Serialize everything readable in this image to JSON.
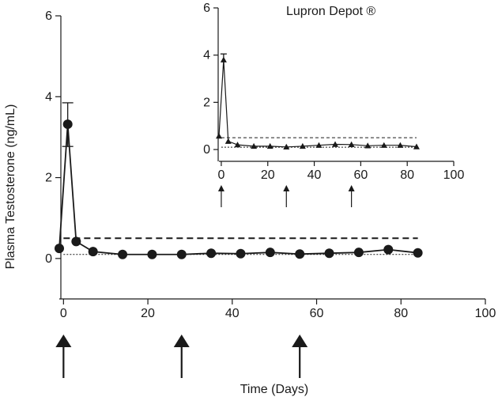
{
  "chart_data": [
    {
      "type": "line",
      "title": "",
      "xlabel": "Time (Days)",
      "ylabel": "Plasma Testosterone (ng/mL)",
      "xlim": [
        -1,
        100
      ],
      "ylim": [
        -1,
        6
      ],
      "xticks": [
        0,
        20,
        40,
        60,
        80,
        100
      ],
      "yticks": [
        0,
        2,
        4,
        6
      ],
      "x_tick_labels": [
        "0",
        "20",
        "40",
        "60",
        "80",
        "100"
      ],
      "y_tick_labels": [
        "0",
        "2",
        "4",
        "6"
      ],
      "grid": false,
      "marker": "circle",
      "series": [
        {
          "x": [
            -1,
            1,
            3,
            7,
            14,
            21,
            28,
            35,
            42,
            49,
            56,
            63,
            70,
            77,
            84
          ],
          "y": [
            0.25,
            3.32,
            0.42,
            0.17,
            0.1,
            0.1,
            0.1,
            0.13,
            0.12,
            0.15,
            0.11,
            0.13,
            0.15,
            0.22,
            0.14
          ],
          "error_bars": [
            {
              "x": 1,
              "y": 3.32,
              "lower": 2.77,
              "upper": 3.85
            }
          ]
        }
      ],
      "reference_lines": [
        {
          "y": 0.5,
          "style": "dashed"
        },
        {
          "y": 0.1,
          "style": "dotted"
        }
      ],
      "dosing_arrows_x": [
        0,
        28,
        56
      ]
    },
    {
      "type": "line",
      "title": "Lupron  Depot ®",
      "xlabel": "",
      "ylabel": "",
      "xlim": [
        -1,
        100
      ],
      "ylim": [
        -0.5,
        6
      ],
      "xticks": [
        0,
        20,
        40,
        60,
        80,
        100
      ],
      "yticks": [
        0,
        2,
        4,
        6
      ],
      "x_tick_labels": [
        "0",
        "20",
        "40",
        "60",
        "80",
        "100"
      ],
      "y_tick_labels": [
        "0",
        "2",
        "4",
        "6"
      ],
      "grid": false,
      "marker": "triangle",
      "series": [
        {
          "x": [
            -1,
            1,
            3,
            7,
            14,
            21,
            28,
            35,
            42,
            49,
            56,
            63,
            70,
            77,
            84
          ],
          "y": [
            0.57,
            3.8,
            0.35,
            0.2,
            0.14,
            0.14,
            0.11,
            0.14,
            0.18,
            0.22,
            0.21,
            0.16,
            0.18,
            0.18,
            0.12
          ],
          "error_bars": [
            {
              "x": 1,
              "y": 3.8,
              "lower": null,
              "upper": 4.05
            }
          ]
        }
      ],
      "reference_lines": [
        {
          "y": 0.5,
          "style": "dashed"
        },
        {
          "y": 0.1,
          "style": "dotted"
        }
      ],
      "dosing_arrows_x": [
        0,
        28,
        56
      ]
    }
  ]
}
